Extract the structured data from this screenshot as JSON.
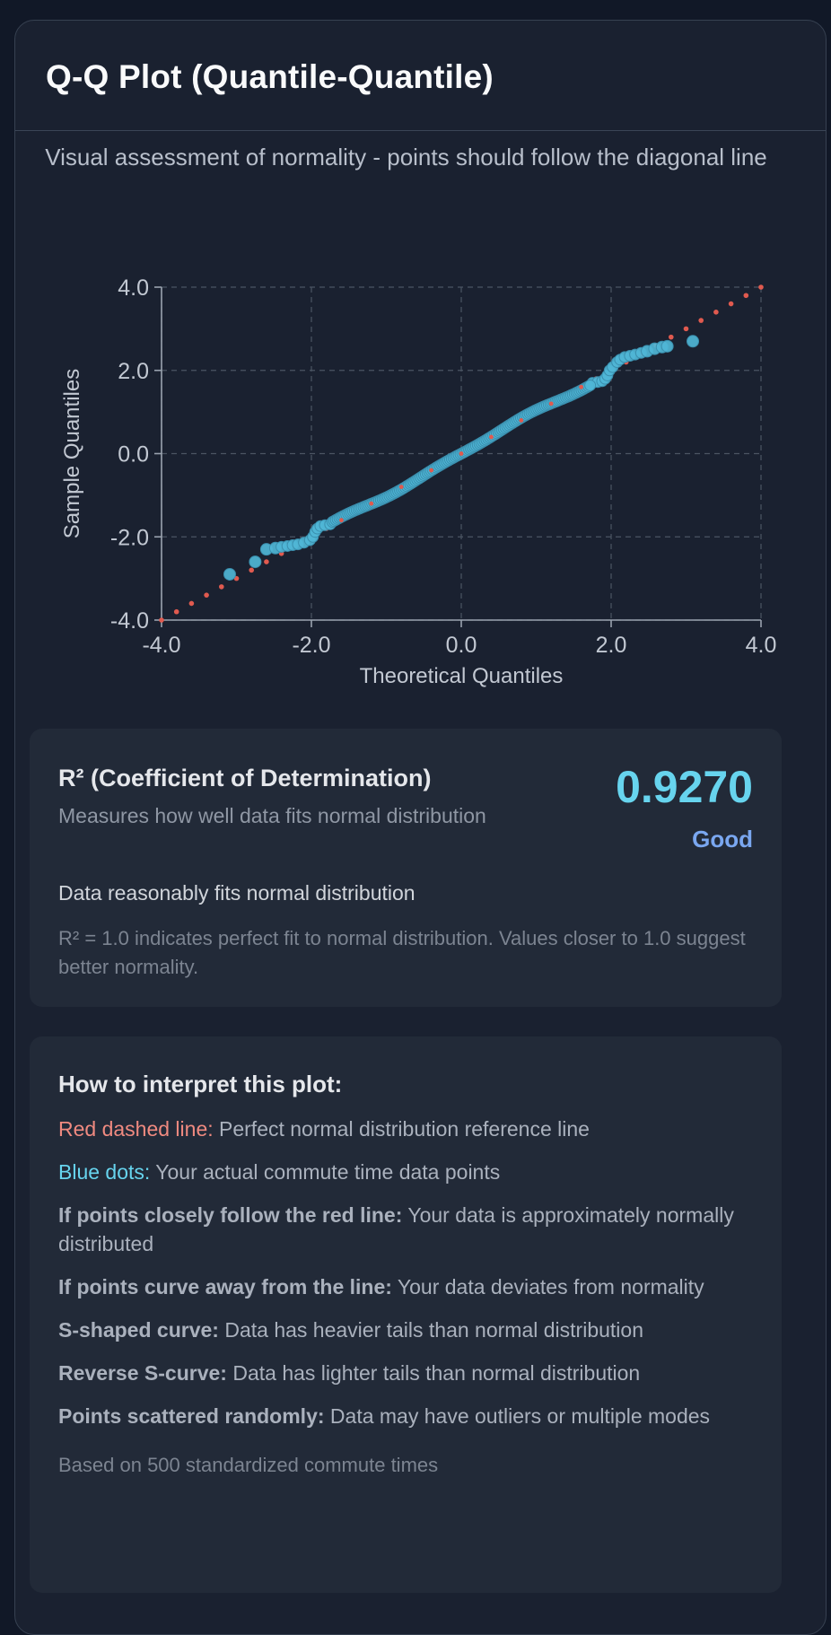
{
  "card": {
    "title": "Q-Q Plot (Quantile-Quantile)",
    "subtitle": "Visual assessment of normality - points should follow the diagonal line"
  },
  "chart_data": {
    "type": "scatter",
    "xlabel": "Theoretical Quantiles",
    "ylabel": "Sample Quantiles",
    "xlim": [
      -4.0,
      4.0
    ],
    "ylim": [
      -4.0,
      4.0
    ],
    "x_ticks": [
      "-4.0",
      "-2.0",
      "0.0",
      "2.0",
      "4.0"
    ],
    "y_ticks": [
      "4.0",
      "2.0",
      "0.0",
      "-2.0",
      "-4.0"
    ],
    "grid": true,
    "reference_line": {
      "name": "Red dashed line",
      "color": "#e05a4f",
      "from": [
        -4.0,
        -4.0
      ],
      "to": [
        4.0,
        4.0
      ]
    },
    "series": [
      {
        "name": "Blue dots",
        "color": "#4fb6d6",
        "sample_count": 500,
        "outer_points": [
          [
            -3.09,
            -2.9
          ],
          [
            -2.75,
            -2.6
          ],
          [
            -2.6,
            -2.3
          ],
          [
            -2.48,
            -2.27
          ],
          [
            -2.4,
            -2.24
          ],
          [
            -2.32,
            -2.22
          ],
          [
            -2.25,
            -2.2
          ],
          [
            -2.18,
            -2.18
          ],
          [
            -2.1,
            -2.14
          ],
          [
            -2.02,
            -2.08
          ],
          [
            -1.98,
            -2.0
          ],
          [
            -1.95,
            -1.88
          ],
          [
            -1.92,
            -1.8
          ],
          [
            -1.88,
            -1.74
          ],
          [
            -1.82,
            -1.72
          ],
          [
            -1.75,
            -1.7
          ],
          [
            1.75,
            1.7
          ],
          [
            1.82,
            1.72
          ],
          [
            1.88,
            1.74
          ],
          [
            1.92,
            1.8
          ],
          [
            1.95,
            1.88
          ],
          [
            1.98,
            2.0
          ],
          [
            2.02,
            2.08
          ],
          [
            2.08,
            2.2
          ],
          [
            2.12,
            2.26
          ],
          [
            2.18,
            2.32
          ],
          [
            2.25,
            2.35
          ],
          [
            2.32,
            2.38
          ],
          [
            2.4,
            2.42
          ],
          [
            2.48,
            2.46
          ],
          [
            2.58,
            2.52
          ],
          [
            2.68,
            2.56
          ],
          [
            2.75,
            2.58
          ],
          [
            3.09,
            2.7
          ]
        ],
        "core_range": [
          -1.72,
          1.72
        ]
      }
    ]
  },
  "r2": {
    "title": "R² (Coefficient of Determination)",
    "description": "Measures how well data fits normal distribution",
    "value": "0.9270",
    "rating": "Good",
    "verdict": "Data reasonably fits normal distribution",
    "note": "R² = 1.0 indicates perfect fit to normal distribution. Values closer to 1.0 suggest better normality."
  },
  "interpretation": {
    "title": "How to interpret this plot:",
    "items": [
      {
        "label": "Red dashed line:",
        "text": " Perfect normal distribution reference line"
      },
      {
        "label": "Blue dots:",
        "text": " Your actual commute time data points"
      },
      {
        "label": "If points closely follow the red line:",
        "text": " Your data is approximately normally distributed"
      },
      {
        "label": "If points curve away from the line:",
        "text": " Your data deviates from normality"
      },
      {
        "label": "S-shaped curve:",
        "text": " Data has heavier tails than normal distribution"
      },
      {
        "label": "Reverse S-curve:",
        "text": " Data has lighter tails than normal distribution"
      },
      {
        "label": "Points scattered randomly:",
        "text": " Data may have outliers or multiple modes"
      }
    ],
    "footer": "Based on 500 standardized commute times"
  }
}
